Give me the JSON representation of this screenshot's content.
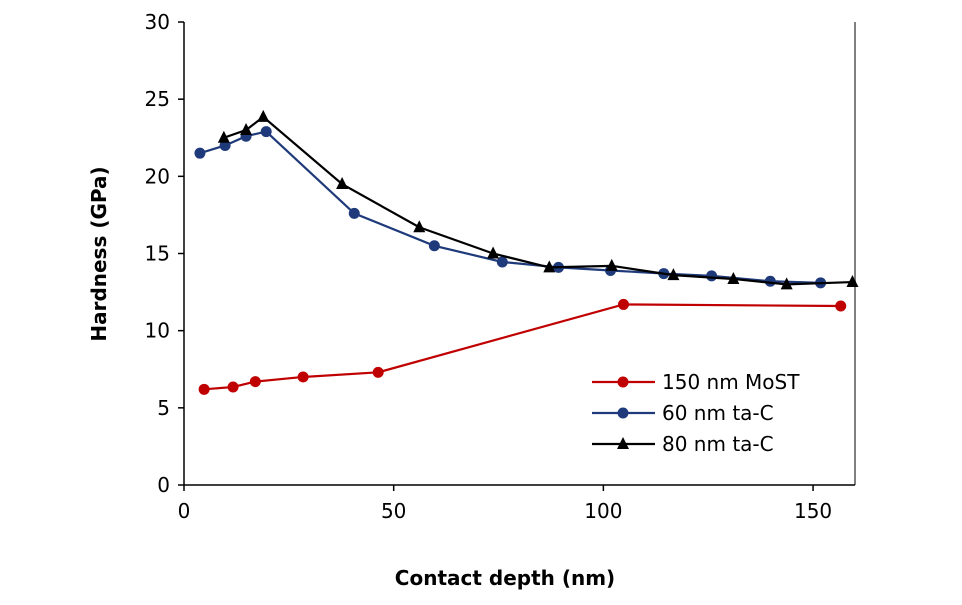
{
  "chart_data": {
    "type": "line",
    "xlabel": "Contact depth (nm)",
    "ylabel": "Hardness  (GPa)",
    "xlim": [
      0,
      160
    ],
    "ylim": [
      0,
      30
    ],
    "xticks": [
      0,
      50,
      100,
      150
    ],
    "yticks": [
      0,
      5,
      10,
      15,
      20,
      25,
      30
    ],
    "grid": false,
    "legend_position": "bottom-right",
    "series": [
      {
        "name": "150 nm MoST",
        "color": "#c00000",
        "marker": "circle",
        "x": [
          4.8,
          11.7,
          17,
          28.4,
          46.3,
          104.8,
          156.6
        ],
        "y": [
          6.2,
          6.35,
          6.7,
          7.0,
          7.3,
          11.7,
          11.6
        ]
      },
      {
        "name": "60 nm ta-C",
        "color": "#1f3a7a",
        "marker": "circle",
        "x": [
          3.8,
          9.8,
          14.8,
          19.6,
          40.6,
          59.7,
          75.9,
          89.3,
          101.7,
          114.4,
          125.8,
          139.8,
          151.8
        ],
        "y": [
          21.5,
          22.0,
          22.6,
          22.9,
          17.6,
          15.5,
          14.45,
          14.1,
          13.9,
          13.7,
          13.55,
          13.2,
          13.1
        ]
      },
      {
        "name": "80 nm ta-C",
        "color": "#000000",
        "marker": "triangle",
        "x": [
          9.5,
          14.8,
          18.9,
          37.7,
          56.1,
          73.7,
          87.1,
          102,
          116.7,
          131,
          143.7,
          159.4
        ],
        "y": [
          22.5,
          23.0,
          23.85,
          19.5,
          16.7,
          15.0,
          14.1,
          14.2,
          13.6,
          13.35,
          13.0,
          13.15
        ]
      }
    ]
  }
}
